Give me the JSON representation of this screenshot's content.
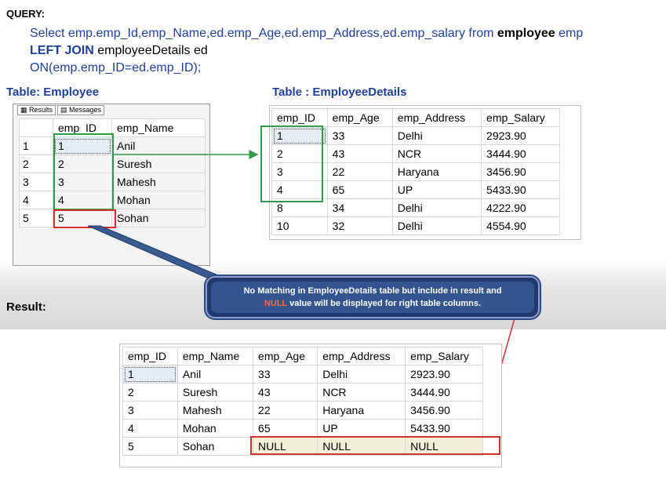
{
  "query": {
    "label": "QUERY:",
    "line1_a": "Select emp.emp_Id,emp_Name,ed.emp_Age,ed.emp_Address,ed.emp_salary from ",
    "line1_b": "employee",
    "line1_c": " emp",
    "line2_a": "LEFT JOIN",
    "line2_b": " employeeDetails ed",
    "line3": "ON(emp.emp_ID=ed.emp_ID);"
  },
  "employee": {
    "title": "Table: Employee",
    "tabs": [
      "Results",
      "Messages"
    ],
    "headers": [
      "",
      "emp_ID",
      "emp_Name"
    ],
    "rows": [
      [
        "1",
        "1",
        "Anil"
      ],
      [
        "2",
        "2",
        "Suresh"
      ],
      [
        "3",
        "3",
        "Mahesh"
      ],
      [
        "4",
        "4",
        "Mohan"
      ],
      [
        "5",
        "5",
        "Sohan"
      ]
    ]
  },
  "employee_details": {
    "title": "Table : EmployeeDetails",
    "headers": [
      "emp_ID",
      "emp_Age",
      "emp_Address",
      "emp_Salary"
    ],
    "rows": [
      [
        "1",
        "33",
        "Delhi",
        "2923.90"
      ],
      [
        "2",
        "43",
        "NCR",
        "3444.90"
      ],
      [
        "3",
        "22",
        "Haryana",
        "3456.90"
      ],
      [
        "4",
        "65",
        "UP",
        "5433.90"
      ],
      [
        "8",
        "34",
        "Delhi",
        "4222.90"
      ],
      [
        "10",
        "32",
        "Delhi",
        "4554.90"
      ]
    ]
  },
  "callout": {
    "part1": "No Matching in ",
    "part2": "EmployeeDetails",
    "part3": " table but include in result and",
    "part4": "NULL",
    "part5": " value will be displayed for right table columns."
  },
  "result": {
    "label": "Result:",
    "headers": [
      "emp_ID",
      "emp_Name",
      "emp_Age",
      "emp_Address",
      "emp_Salary"
    ],
    "rows": [
      [
        "1",
        "Anil",
        "33",
        "Delhi",
        "2923.90"
      ],
      [
        "2",
        "Suresh",
        "43",
        "NCR",
        "3444.90"
      ],
      [
        "3",
        "Mahesh",
        "22",
        "Haryana",
        "3456.90"
      ],
      [
        "4",
        "Mohan",
        "65",
        "UP",
        "5433.90"
      ],
      [
        "5",
        "Sohan",
        "NULL",
        "NULL",
        "NULL"
      ]
    ]
  },
  "colors": {
    "title_blue": "#1f3f9a",
    "match_green": "#2e9a4a",
    "nomatch_red": "#d32f2f",
    "callout_bg": "#33558f"
  }
}
